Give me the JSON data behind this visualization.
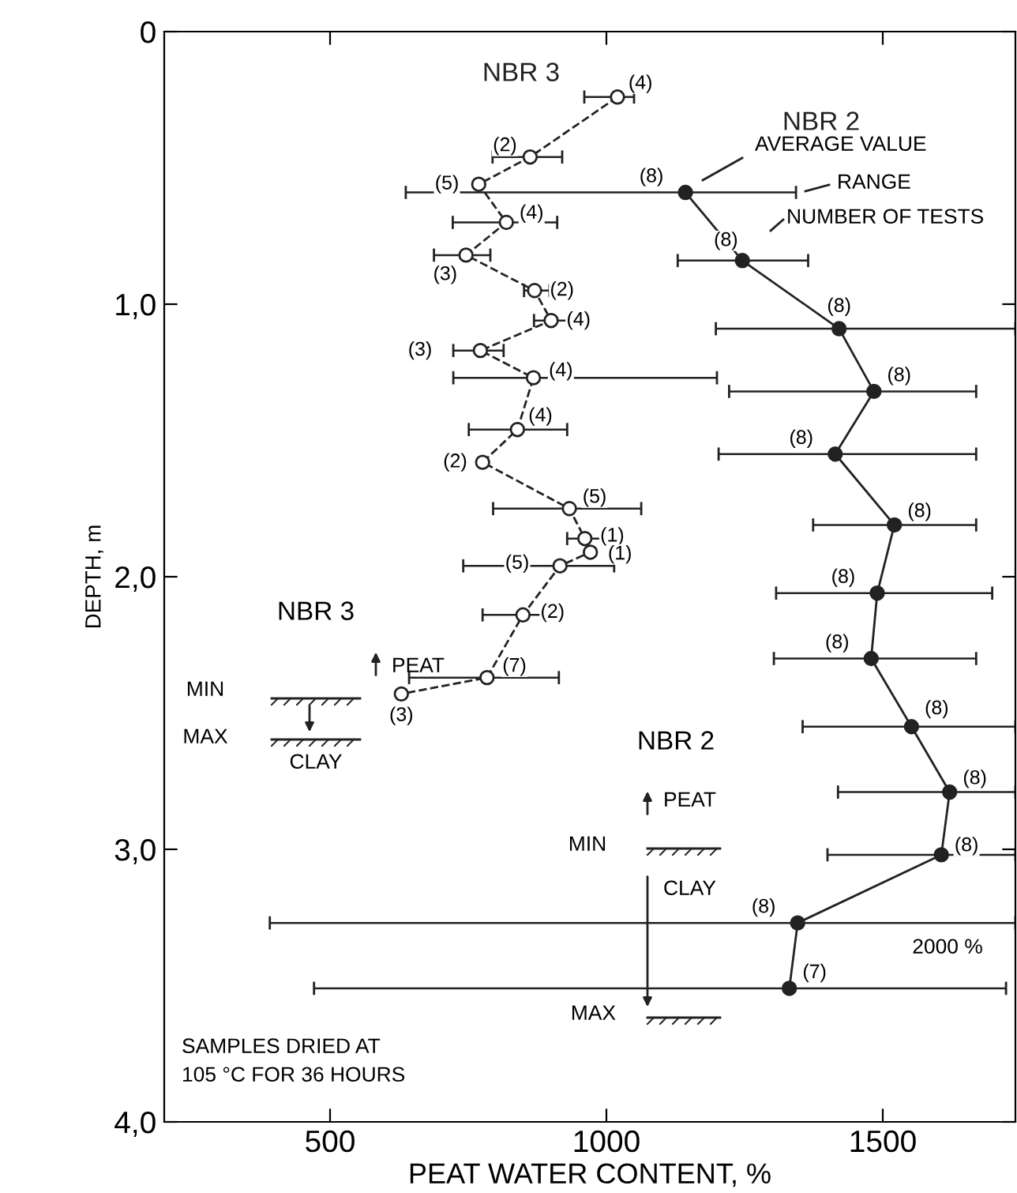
{
  "chart_data": {
    "type": "line",
    "xlabel": "PEAT WATER CONTENT, %",
    "ylabel": "DEPTH, m",
    "xlim": [
      200,
      1740
    ],
    "xticks": [
      500,
      1000,
      1500
    ],
    "ylim": [
      4,
      0
    ],
    "yticks": [
      0,
      {
        "value": 1,
        "label": "1,0"
      },
      {
        "value": 2,
        "label": "2,0"
      },
      {
        "value": 3,
        "label": "3,0"
      },
      {
        "value": 4,
        "label": "4,0"
      }
    ],
    "grid": false,
    "legend": false,
    "marker": "circle",
    "series": [
      {
        "name": "NBR 3",
        "color": "#222222",
        "line_style": "dashed",
        "x": [
          1020,
          862,
          769,
          819,
          746,
          870,
          900,
          772,
          868,
          839,
          776,
          933,
          961,
          971,
          916,
          849,
          784,
          629
        ],
        "values": [
          0.24,
          0.46,
          0.56,
          0.7,
          0.82,
          0.95,
          1.06,
          1.17,
          1.27,
          1.46,
          1.58,
          1.75,
          1.86,
          1.91,
          1.96,
          2.14,
          2.37,
          2.43
        ],
        "xerrors": [
          [
            960,
            1050
          ],
          [
            794,
            920
          ],
          null,
          [
            722,
            911
          ],
          [
            688,
            790
          ],
          [
            851,
            897
          ],
          [
            869,
            929
          ],
          [
            723,
            814
          ],
          [
            723,
            1200
          ],
          [
            751,
            929
          ],
          null,
          [
            795,
            1063
          ],
          [
            929,
            1000
          ],
          null,
          [
            741,
            1014
          ],
          [
            776,
            921
          ],
          [
            643,
            914
          ],
          null
        ]
      },
      {
        "name": "NBR 2",
        "color": "#222222",
        "line_style": "solid",
        "x": [
          1143,
          1246,
          1421,
          1484,
          1414,
          1521,
          1490,
          1479,
          1552,
          1621,
          1606,
          1346,
          1331
        ],
        "values": [
          0.59,
          0.84,
          1.09,
          1.32,
          1.55,
          1.81,
          2.06,
          2.3,
          2.55,
          2.79,
          3.02,
          3.27,
          3.51
        ],
        "xerrors": [
          [
            637,
            1343
          ],
          [
            1129,
            1365
          ],
          [
            1198,
            1740
          ],
          [
            1222,
            1669
          ],
          [
            1203,
            1669
          ],
          [
            1374,
            1669
          ],
          [
            1307,
            1698
          ],
          [
            1303,
            1669
          ],
          [
            1355,
            1740
          ],
          [
            1419,
            1740
          ],
          [
            1400,
            1740
          ],
          [
            391,
            1740
          ],
          [
            471,
            1723
          ]
        ]
      }
    ],
    "annotations": [
      {
        "text": "(4)",
        "x": 1020,
        "y": 0.24
      },
      {
        "text": "(2)",
        "x": 862,
        "y": 0.46
      },
      {
        "text": "(5)",
        "x": 769,
        "y": 0.56
      },
      {
        "text": "(4)",
        "x": 819,
        "y": 0.7
      },
      {
        "text": "(3)",
        "x": 746,
        "y": 0.82
      },
      {
        "text": "(2)",
        "x": 870,
        "y": 0.95
      },
      {
        "text": "(4)",
        "x": 900,
        "y": 1.06
      },
      {
        "text": "(3)",
        "x": 772,
        "y": 1.17
      },
      {
        "text": "(4)",
        "x": 868,
        "y": 1.27
      },
      {
        "text": "(4)",
        "x": 839,
        "y": 1.46
      },
      {
        "text": "(2)",
        "x": 776,
        "y": 1.58
      },
      {
        "text": "(5)",
        "x": 933,
        "y": 1.75
      },
      {
        "text": "(1)",
        "x": 961,
        "y": 1.86
      },
      {
        "text": "(1)",
        "x": 971,
        "y": 1.91
      },
      {
        "text": "(5)",
        "x": 916,
        "y": 1.96
      },
      {
        "text": "(2)",
        "x": 849,
        "y": 2.14
      },
      {
        "text": "(7)",
        "x": 784,
        "y": 2.37
      },
      {
        "text": "(3)",
        "x": 629,
        "y": 2.43
      },
      {
        "text": "(8)",
        "x": 1143,
        "y": 0.59
      },
      {
        "text": "(8)",
        "x": 1246,
        "y": 0.84
      },
      {
        "text": "(8)",
        "x": 1421,
        "y": 1.09
      },
      {
        "text": "(8)",
        "x": 1484,
        "y": 1.32
      },
      {
        "text": "(8)",
        "x": 1414,
        "y": 1.55
      },
      {
        "text": "(8)",
        "x": 1521,
        "y": 1.81
      },
      {
        "text": "(8)",
        "x": 1490,
        "y": 2.06
      },
      {
        "text": "(8)",
        "x": 1479,
        "y": 2.3
      },
      {
        "text": "(8)",
        "x": 1552,
        "y": 2.55
      },
      {
        "text": "(8)",
        "x": 1621,
        "y": 2.79
      },
      {
        "text": "(8)",
        "x": 1606,
        "y": 3.02
      },
      {
        "text": "(8)",
        "x": 1346,
        "y": 3.27
      },
      {
        "text": "(7)",
        "x": 1331,
        "y": 3.51
      },
      "AVERAGE VALUE",
      "RANGE",
      "NUMBER OF TESTS",
      "NBR 3",
      "PEAT",
      "MIN",
      "MAX",
      "CLAY",
      "NBR 2",
      "PEAT",
      "MIN",
      "CLAY",
      "MAX",
      "2000 %",
      "SAMPLES DRIED AT\n105 °C FOR 36 HOURS"
    ]
  }
}
